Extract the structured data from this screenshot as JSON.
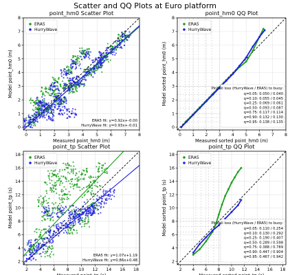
{
  "figure": {
    "title": "Scatter and QQ Plots at Euro platform"
  },
  "colors": {
    "era5": "#1a9e1a",
    "hurrywave": "#1f1fe0",
    "identity": "#000000",
    "quantile_guides": "#cccccc"
  },
  "chart_data": [
    {
      "id": "hm0-scatter",
      "type": "scatter",
      "title": "point_hm0 Scatter Plot",
      "xlabel": "Measured point_hm0 (m)",
      "ylabel": "Model point_hm0 (m)",
      "xlim": [
        -0.2,
        8
      ],
      "ylim": [
        -0.2,
        8
      ],
      "xticks": [
        0,
        1,
        2,
        3,
        4,
        5,
        6,
        7,
        8
      ],
      "yticks": [
        0,
        1,
        2,
        3,
        4,
        5,
        6,
        7,
        8
      ],
      "grid": true,
      "legend": {
        "position": "top-left",
        "entries": [
          "ERA5",
          "HurryWave"
        ]
      },
      "identity_line": true,
      "fits": [
        {
          "series": "ERA5",
          "slope": 0.92,
          "intercept": -0.0,
          "label": "ERA5 fit: y=0.92x+-0.00"
        },
        {
          "series": "HurryWave",
          "slope": 0.93,
          "intercept": -0.01,
          "label": "HurryWave fit: y=0.93x+-0.01"
        }
      ],
      "series": [
        {
          "name": "ERA5",
          "x": [
            0.3,
            0.8,
            1.2,
            1.6,
            2.0,
            2.4,
            2.9,
            3.3,
            3.8,
            4.4,
            5.0,
            5.6,
            6.1,
            6.8,
            0.6,
            1.4,
            2.2,
            3.0,
            3.6,
            4.1
          ],
          "y": [
            0.4,
            1.1,
            1.6,
            1.3,
            2.4,
            1.9,
            3.1,
            2.8,
            3.2,
            4.1,
            4.3,
            5.1,
            5.9,
            6.6,
            1.8,
            2.6,
            3.3,
            4.2,
            5.0,
            5.6
          ]
        },
        {
          "name": "HurryWave",
          "x": [
            0.2,
            0.5,
            0.9,
            1.3,
            1.7,
            2.1,
            2.5,
            3.0,
            3.4,
            3.9,
            4.5,
            5.0,
            5.5,
            6.0,
            6.6,
            7.0,
            1.0,
            2.0,
            2.8,
            3.5,
            4.2,
            1.6,
            2.4,
            3.2,
            5.2
          ],
          "y": [
            0.3,
            0.6,
            1.0,
            1.5,
            1.4,
            2.2,
            2.0,
            2.9,
            3.3,
            3.4,
            4.0,
            4.6,
            5.2,
            5.5,
            6.1,
            6.7,
            1.9,
            3.0,
            3.9,
            4.6,
            5.3,
            0.8,
            1.2,
            1.0,
            4.8
          ]
        }
      ]
    },
    {
      "id": "hm0-qq",
      "type": "line",
      "title": "point_hm0 QQ Plot",
      "xlabel": "Measured sorted point_hm0 (m)",
      "ylabel": "Model sorted point_hm0 (m)",
      "xlim": [
        -0.2,
        8
      ],
      "ylim": [
        -0.2,
        8
      ],
      "xticks": [
        0,
        1,
        2,
        3,
        4,
        5,
        6,
        7,
        8
      ],
      "yticks": [
        0,
        1,
        2,
        3,
        4,
        5,
        6,
        7,
        8
      ],
      "grid": true,
      "legend": {
        "position": "top-left",
        "entries": [
          "ERA5",
          "HurryWave"
        ]
      },
      "identity_line": true,
      "quantile_guides": [
        0.4,
        0.7,
        1.0,
        1.4,
        1.9,
        2.4,
        3.0
      ],
      "pinball": {
        "title": "Pinball loss (HurryWave / ERA5) to buoy:",
        "rows": [
          "q=0.05: 0.050 / 0.040",
          "q=0.10: 0.055 / 0.045",
          "q=0.25: 0.069 / 0.061",
          "q=0.50: 0.093 / 0.087",
          "q=0.75: 0.117 / 0.114",
          "q=0.90: 0.132 / 0.130",
          "q=0.95: 0.138 / 0.135"
        ]
      },
      "series": [
        {
          "name": "ERA5",
          "x": [
            0.1,
            0.5,
            1.0,
            1.5,
            2.0,
            2.5,
            3.0,
            3.5,
            4.0,
            4.5,
            5.0,
            5.5,
            6.0,
            6.3
          ],
          "y": [
            0.0,
            0.45,
            0.95,
            1.45,
            1.95,
            2.45,
            2.95,
            3.45,
            3.9,
            4.4,
            4.8,
            5.6,
            6.6,
            7.2
          ]
        },
        {
          "name": "HurryWave",
          "x": [
            0.1,
            0.5,
            1.0,
            1.5,
            2.0,
            2.5,
            3.0,
            3.5,
            4.0,
            4.5,
            5.0,
            5.5,
            6.0,
            6.4
          ],
          "y": [
            0.0,
            0.4,
            0.9,
            1.4,
            1.9,
            2.4,
            2.9,
            3.4,
            3.9,
            4.5,
            5.1,
            5.9,
            6.6,
            7.1
          ]
        }
      ]
    },
    {
      "id": "tp-scatter",
      "type": "scatter",
      "title": "point_tp Scatter Plot",
      "xlabel": "Measured point_tp (s)",
      "ylabel": "Model point_tp (s)",
      "xlim": [
        1.5,
        18.5
      ],
      "ylim": [
        1.5,
        18.5
      ],
      "xticks": [
        2,
        4,
        6,
        8,
        10,
        12,
        14,
        16,
        18
      ],
      "yticks": [
        2,
        4,
        6,
        8,
        10,
        12,
        14,
        16,
        18
      ],
      "grid": true,
      "legend": {
        "position": "top-left",
        "entries": [
          "ERA5",
          "HurryWave"
        ]
      },
      "identity_line": true,
      "fits": [
        {
          "series": "ERA5",
          "slope": 1.07,
          "intercept": 1.19,
          "label": "ERA5 fit: y=1.07x+1.19"
        },
        {
          "series": "HurryWave",
          "slope": 0.86,
          "intercept": 0.48,
          "label": "HurryWave fit: y=0.86x+0.48"
        }
      ],
      "series": [
        {
          "name": "ERA5",
          "x": [
            3.0,
            4.0,
            5.0,
            5.5,
            6.0,
            7.0,
            8.0,
            9.0,
            10.0,
            11.0,
            12.0,
            13.0,
            4.5,
            6.5,
            7.5,
            9.5,
            11.5,
            5.0,
            8.5,
            10.5
          ],
          "y": [
            4.0,
            6.0,
            9.0,
            13.0,
            15.0,
            14.0,
            16.0,
            13.5,
            15.0,
            12.5,
            14.0,
            16.0,
            11.0,
            10.0,
            12.0,
            9.0,
            10.5,
            3.5,
            7.0,
            8.0
          ]
        },
        {
          "name": "HurryWave",
          "x": [
            2.5,
            3.0,
            4.0,
            5.0,
            6.0,
            7.0,
            8.0,
            9.0,
            10.0,
            11.0,
            12.0,
            13.0,
            14.0,
            5.0,
            7.0,
            9.0,
            11.0
          ],
          "y": [
            3.0,
            4.5,
            4.0,
            5.5,
            6.5,
            7.0,
            7.5,
            8.5,
            9.0,
            10.0,
            10.0,
            11.0,
            12.0,
            9.5,
            9.5,
            9.5,
            9.5
          ]
        }
      ]
    },
    {
      "id": "tp-qq",
      "type": "line",
      "title": "point_tp QQ Plot",
      "xlabel": "Measured sorted point_tp (s)",
      "ylabel": "Model sorted point_tp (s)",
      "xlim": [
        1.5,
        18.5
      ],
      "ylim": [
        1.5,
        18.5
      ],
      "xticks": [
        2,
        4,
        6,
        8,
        10,
        12,
        14,
        16,
        18
      ],
      "yticks": [
        2,
        4,
        6,
        8,
        10,
        12,
        14,
        16,
        18
      ],
      "grid": true,
      "legend": {
        "position": "top-left",
        "entries": [
          "ERA5",
          "HurryWave"
        ]
      },
      "identity_line": true,
      "quantile_guides": [
        4.4,
        5.2,
        6.4,
        7.2,
        8.0,
        8.4
      ],
      "pinball": {
        "title": "Pinball loss (HurryWave / ERA5) to buoy:",
        "rows": [
          "q=0.05: 0.110 / 0.254",
          "q=0.10: 0.130 / 0.292",
          "q=0.25: 0.190 / 0.407",
          "q=0.50: 0.289 / 0.598",
          "q=0.75: 0.388 / 0.789",
          "q=0.90: 0.447 / 0.904",
          "q=0.95: 0.467 / 0.942"
        ]
      },
      "series": [
        {
          "name": "ERA5",
          "x": [
            4.0,
            5.0,
            6.0,
            7.0,
            7.5,
            8.0,
            8.5,
            9.0,
            9.5,
            10.0,
            10.5,
            11.0,
            11.5
          ],
          "y": [
            3.0,
            3.8,
            5.0,
            6.4,
            7.5,
            9.0,
            10.5,
            11.8,
            12.8,
            13.8,
            14.6,
            15.4,
            16.0
          ]
        },
        {
          "name": "HurryWave",
          "x": [
            4.0,
            5.0,
            6.0,
            7.0,
            8.0,
            9.0,
            10.0,
            11.0,
            11.5
          ],
          "y": [
            3.3,
            4.6,
            5.6,
            6.6,
            7.4,
            8.4,
            9.4,
            10.4,
            11.2
          ]
        }
      ]
    }
  ]
}
